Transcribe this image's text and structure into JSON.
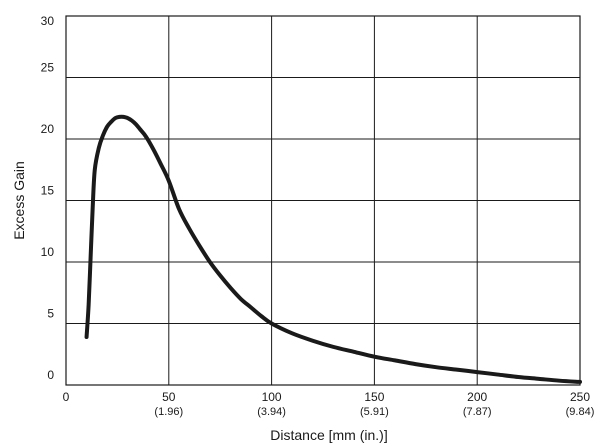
{
  "chart_data": {
    "type": "line",
    "title": "",
    "xlabel": "Distance [mm (in.)]",
    "ylabel": "Excess Gain",
    "xlim": [
      0,
      250
    ],
    "ylim": [
      0,
      30
    ],
    "grid": true,
    "x_ticks": [
      {
        "value": 0,
        "label": "0",
        "sub": ""
      },
      {
        "value": 50,
        "label": "50",
        "sub": "(1.96)"
      },
      {
        "value": 100,
        "label": "100",
        "sub": "(3.94)"
      },
      {
        "value": 150,
        "label": "150",
        "sub": "(5.91)"
      },
      {
        "value": 200,
        "label": "200",
        "sub": "(7.87)"
      },
      {
        "value": 250,
        "label": "250",
        "sub": "(9.84)"
      }
    ],
    "y_ticks": [
      {
        "value": 0,
        "label": "0"
      },
      {
        "value": 5,
        "label": "5"
      },
      {
        "value": 10,
        "label": "10"
      },
      {
        "value": 15,
        "label": "15"
      },
      {
        "value": 20,
        "label": "20"
      },
      {
        "value": 25,
        "label": "25"
      },
      {
        "value": 30,
        "label": "30"
      }
    ],
    "colors": {
      "line": "#1a1a1a",
      "grid": "#1a1a1a"
    },
    "series": [
      {
        "x": [
          10,
          11,
          12,
          13,
          14,
          16,
          18,
          20,
          22,
          24,
          26,
          28,
          30,
          32,
          34,
          36,
          38,
          40,
          43,
          46,
          50,
          55,
          60,
          65,
          70,
          75,
          80,
          85,
          90,
          95,
          100,
          110,
          120,
          130,
          140,
          150,
          160,
          170,
          180,
          190,
          200,
          210,
          220,
          230,
          240,
          250
        ],
        "y": [
          3.9,
          6.5,
          10.5,
          14.5,
          17.5,
          19.3,
          20.3,
          21.0,
          21.4,
          21.7,
          21.8,
          21.8,
          21.7,
          21.5,
          21.2,
          20.8,
          20.4,
          19.9,
          19.0,
          18.0,
          16.6,
          14.3,
          12.7,
          11.3,
          10.0,
          8.9,
          7.9,
          7.0,
          6.3,
          5.6,
          5.0,
          4.2,
          3.6,
          3.1,
          2.7,
          2.3,
          2.0,
          1.7,
          1.45,
          1.25,
          1.05,
          0.85,
          0.65,
          0.5,
          0.35,
          0.25
        ]
      }
    ]
  }
}
